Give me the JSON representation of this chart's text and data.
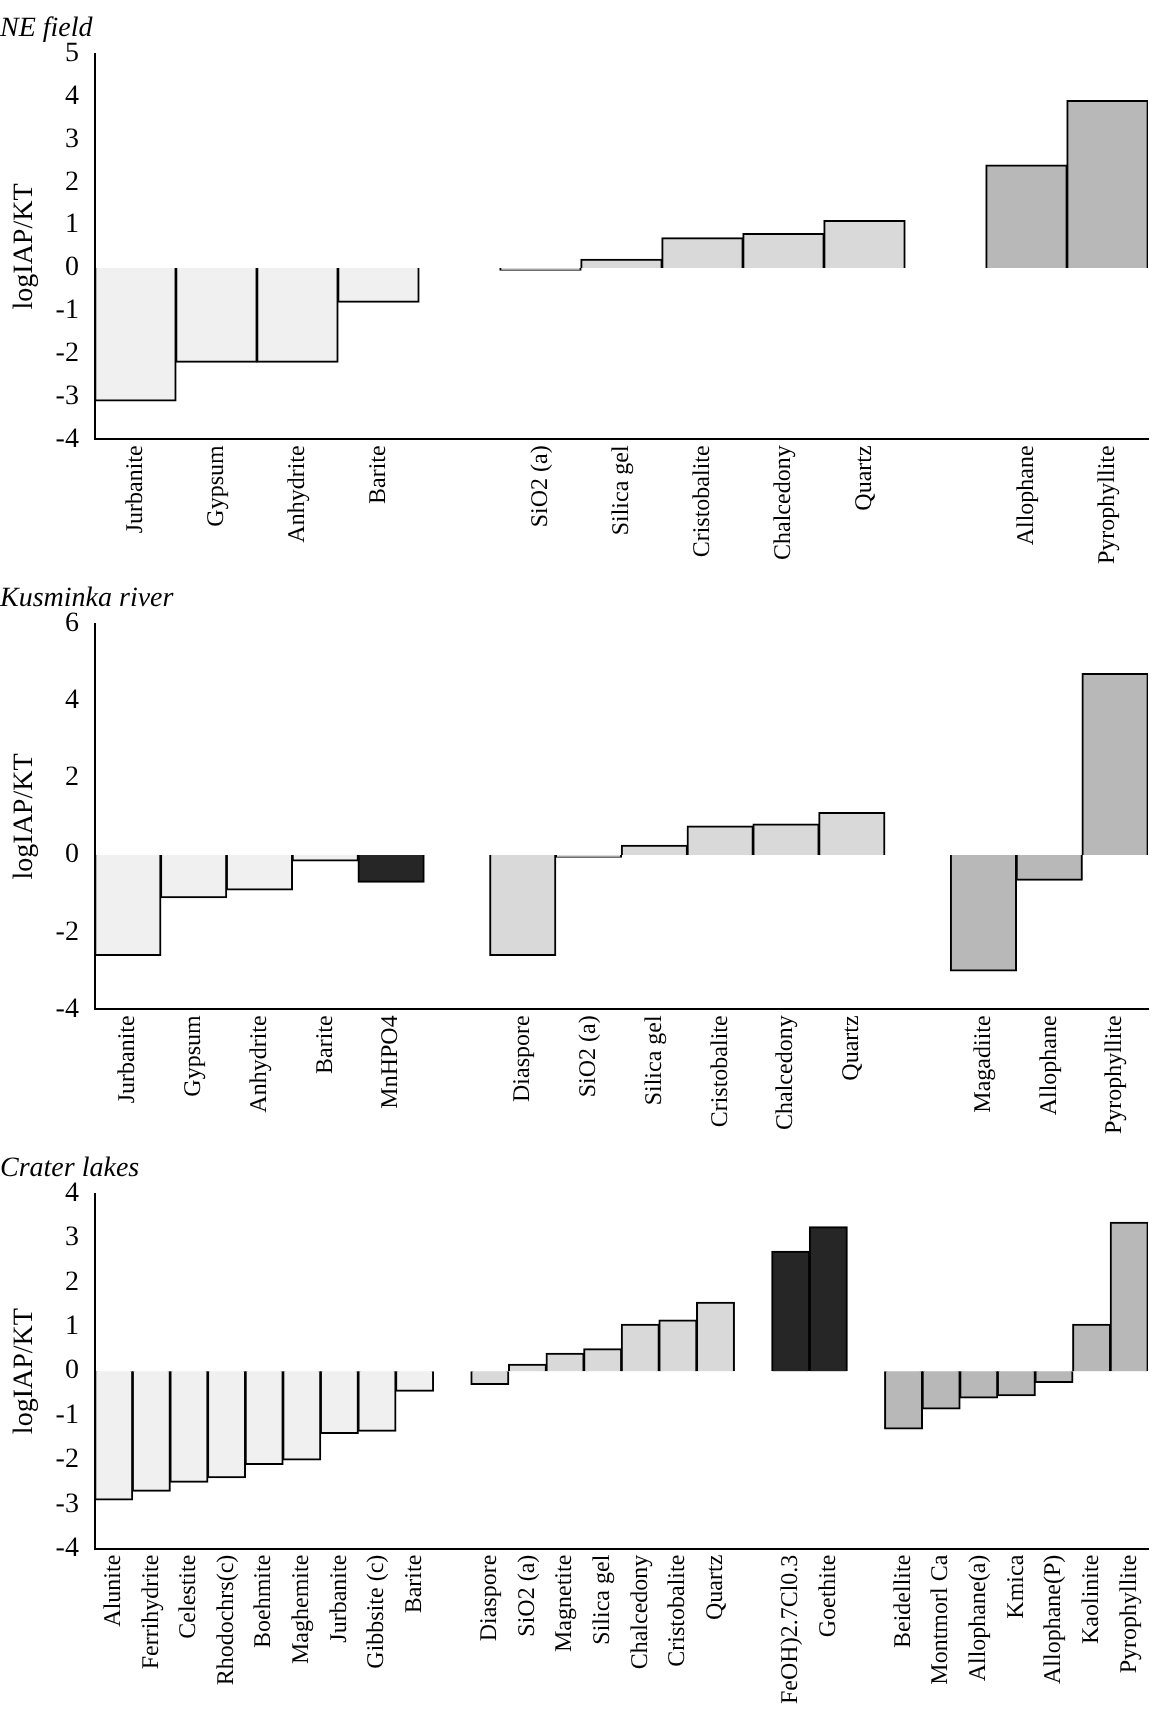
{
  "chart_data": [
    {
      "type": "bar",
      "title": "NE field",
      "ylabel": "logIAP/KT",
      "ylim": [
        -4,
        5
      ],
      "yticks": [
        -4,
        -3,
        -2,
        -1,
        0,
        1,
        2,
        3,
        4,
        5
      ],
      "grid": false,
      "categories": [
        "Jurbanite",
        "Gypsum",
        "Anhydrite",
        "Barite",
        null,
        "SiO2 (a)",
        "Silica gel",
        "Cristobalite",
        "Chalcedony",
        "Quartz",
        null,
        "Allophane",
        "Pyrophyllite"
      ],
      "values": [
        -3.1,
        -2.2,
        -2.2,
        -0.8,
        null,
        -0.05,
        0.2,
        0.7,
        0.8,
        1.1,
        null,
        2.4,
        3.9
      ],
      "colors": [
        "#f0f0f0",
        "#f0f0f0",
        "#f0f0f0",
        "#f0f0f0",
        null,
        "#d9d9d9",
        "#d9d9d9",
        "#d9d9d9",
        "#d9d9d9",
        "#d9d9d9",
        null,
        "#b8b8b8",
        "#b8b8b8"
      ]
    },
    {
      "type": "bar",
      "title": "Kusminka river",
      "ylabel": "logIAP/KT",
      "ylim": [
        -4,
        6
      ],
      "yticks": [
        -4,
        -2,
        0,
        2,
        4,
        6
      ],
      "grid": false,
      "categories": [
        "Jurbanite",
        "Gypsum",
        "Anhydrite",
        "Barite",
        "MnHPO4",
        null,
        "Diaspore",
        "SiO2 (a)",
        "Silica gel",
        "Cristobalite",
        "Chalcedony",
        "Quartz",
        null,
        "Magadiite",
        "Allophane",
        "Pyrophyllite"
      ],
      "values": [
        -2.6,
        -1.1,
        -0.9,
        -0.15,
        -0.7,
        null,
        -2.6,
        -0.05,
        0.25,
        0.75,
        0.8,
        1.1,
        null,
        -3.0,
        -0.65,
        4.7
      ],
      "colors": [
        "#f0f0f0",
        "#f0f0f0",
        "#f0f0f0",
        "#f0f0f0",
        "#262626",
        null,
        "#d9d9d9",
        "#d9d9d9",
        "#d9d9d9",
        "#d9d9d9",
        "#d9d9d9",
        "#d9d9d9",
        null,
        "#b8b8b8",
        "#b8b8b8",
        "#b8b8b8"
      ]
    },
    {
      "type": "bar",
      "title": "Crater lakes",
      "ylabel": "logIAP/KT",
      "ylim": [
        -4,
        4
      ],
      "yticks": [
        -4,
        -3,
        -2,
        -1,
        0,
        1,
        2,
        3,
        4
      ],
      "grid": false,
      "categories": [
        "Alunite",
        "Ferrihydrite",
        "Celestite",
        "Rhodochrs(c)",
        "Boehmite",
        "Maghemite",
        "Jurbanite",
        "Gibbsite (c)",
        "Barite",
        null,
        "Diaspore",
        "SiO2 (a)",
        "Magnetite",
        "Silica gel",
        "Chalcedony",
        "Cristobalite",
        "Quartz",
        null,
        "FeOH)2.7Cl0.3",
        "Goethite",
        null,
        "Beidellite",
        "Montmorl Ca",
        "Allophane(a)",
        "Kmica",
        "Allophane(P)",
        "Kaolinite",
        "Pyrophyllite"
      ],
      "values": [
        -2.9,
        -2.7,
        -2.5,
        -2.4,
        -2.1,
        -2.0,
        -1.4,
        -1.35,
        -0.45,
        null,
        -0.3,
        0.15,
        0.4,
        0.5,
        1.05,
        1.15,
        1.55,
        null,
        2.7,
        3.25,
        null,
        -1.3,
        -0.85,
        -0.6,
        -0.55,
        -0.25,
        1.05,
        3.35
      ],
      "colors": [
        "#f0f0f0",
        "#f0f0f0",
        "#f0f0f0",
        "#f0f0f0",
        "#f0f0f0",
        "#f0f0f0",
        "#f0f0f0",
        "#f0f0f0",
        "#f0f0f0",
        null,
        "#d9d9d9",
        "#d9d9d9",
        "#d9d9d9",
        "#d9d9d9",
        "#d9d9d9",
        "#d9d9d9",
        "#d9d9d9",
        null,
        "#262626",
        "#262626",
        null,
        "#b8b8b8",
        "#b8b8b8",
        "#b8b8b8",
        "#b8b8b8",
        "#b8b8b8",
        "#b8b8b8",
        "#b8b8b8"
      ]
    }
  ]
}
